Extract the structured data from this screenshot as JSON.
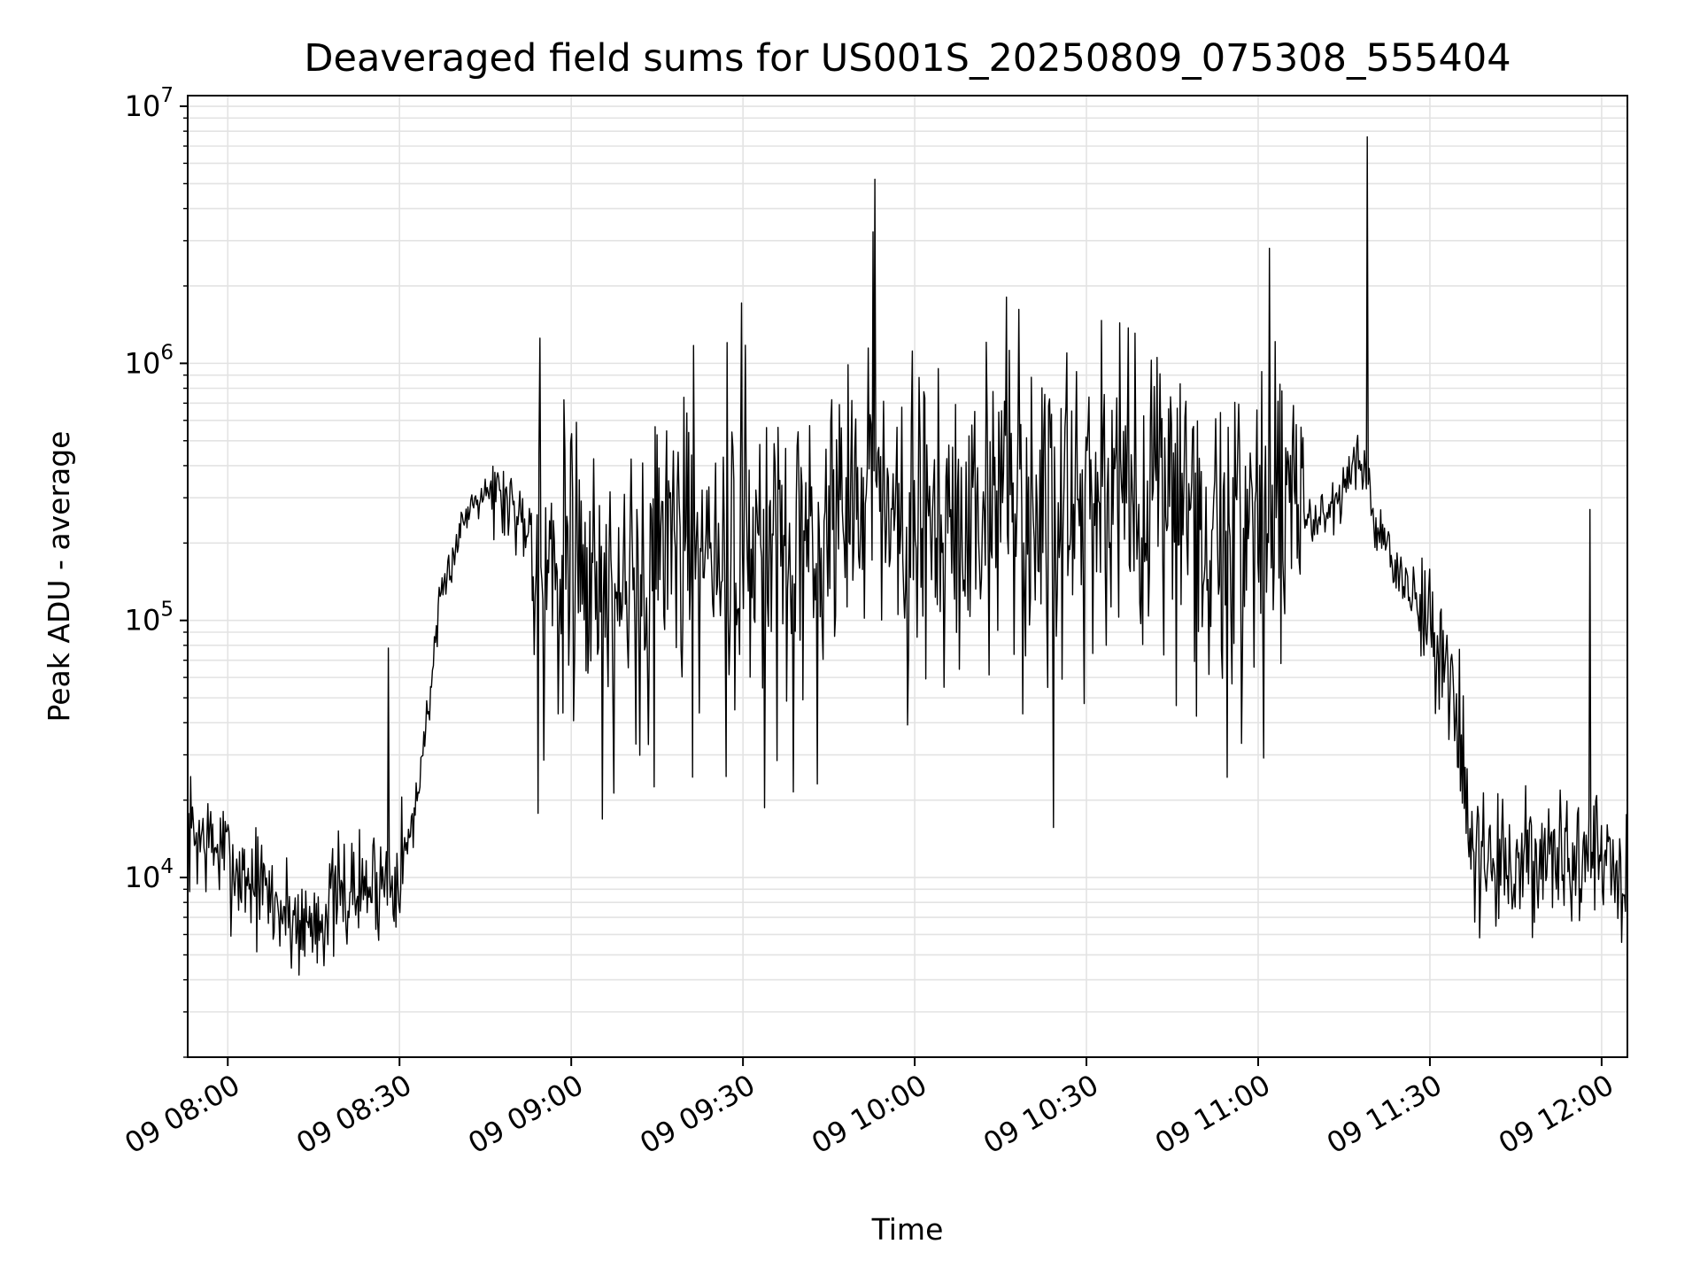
{
  "chart_data": {
    "type": "line",
    "title": "Deaveraged field sums for US001S_20250809_075308_555404",
    "xlabel": "Time",
    "ylabel": "Peak ADU - average",
    "yscale": "log",
    "ylim": [
      2000,
      11000000
    ],
    "xlim": [
      "2025-08-09 07:53:00",
      "2025-08-09 12:04:30"
    ],
    "x_ticks": [
      {
        "label": "09 08:00",
        "time": "08:00"
      },
      {
        "label": "09 08:30",
        "time": "08:30"
      },
      {
        "label": "09 09:00",
        "time": "09:00"
      },
      {
        "label": "09 09:30",
        "time": "09:30"
      },
      {
        "label": "09 10:00",
        "time": "10:00"
      },
      {
        "label": "09 10:30",
        "time": "10:30"
      },
      {
        "label": "09 11:00",
        "time": "11:00"
      },
      {
        "label": "09 11:30",
        "time": "11:30"
      },
      {
        "label": "09 12:00",
        "time": "12:00"
      }
    ],
    "y_ticks": [
      {
        "base": "10",
        "exp": "4",
        "value": 10000
      },
      {
        "base": "10",
        "exp": "5",
        "value": 100000
      },
      {
        "base": "10",
        "exp": "6",
        "value": 1000000
      },
      {
        "base": "10",
        "exp": "7",
        "value": 10000000
      }
    ],
    "grid": true,
    "line_color": "#000000",
    "grid_color": "#e3e3e3",
    "series": [
      {
        "x": [
          "07:53",
          "07:56",
          "07:59",
          "08:02",
          "08:05",
          "08:08",
          "08:11",
          "08:14",
          "08:17",
          "08:20",
          "08:23",
          "08:26",
          "08:29",
          "08:32",
          "08:35",
          "08:37",
          "08:39",
          "08:41",
          "08:43",
          "08:45",
          "08:48",
          "08:51",
          "08:54",
          "08:57",
          "09:00",
          "09:05",
          "09:10",
          "09:15",
          "09:20",
          "09:25",
          "09:30",
          "09:35",
          "09:40",
          "09:45",
          "09:50",
          "09:53",
          "09:55",
          "10:00",
          "10:05",
          "10:10",
          "10:15",
          "10:20",
          "10:25",
          "10:30",
          "10:35",
          "10:40",
          "10:45",
          "10:50",
          "10:55",
          "11:00",
          "11:02",
          "11:05",
          "11:08",
          "11:11",
          "11:14",
          "11:17",
          "11:19",
          "11:20",
          "11:21",
          "11:24",
          "11:27",
          "11:30",
          "11:33",
          "11:35",
          "11:36",
          "11:38",
          "11:41",
          "11:44",
          "11:47",
          "11:50",
          "11:53",
          "11:56",
          "11:59",
          "12:02",
          "12:04"
        ],
        "y": [
          15000,
          14000,
          12500,
          10500,
          9500,
          8000,
          7000,
          6500,
          7500,
          8500,
          9000,
          9500,
          10500,
          14000,
          45000,
          110000,
          170000,
          240000,
          300000,
          330000,
          300000,
          260000,
          220000,
          140000,
          150000,
          130000,
          160000,
          170000,
          170000,
          180000,
          190000,
          200000,
          210000,
          230000,
          250000,
          300000,
          220000,
          210000,
          230000,
          240000,
          250000,
          270000,
          290000,
          260000,
          250000,
          240000,
          250000,
          230000,
          220000,
          200000,
          240000,
          250000,
          250000,
          260000,
          300000,
          420000,
          350000,
          250000,
          210000,
          160000,
          130000,
          100000,
          55000,
          35000,
          22000,
          12000,
          11000,
          10500,
          11000,
          12000,
          11500,
          12000,
          12500,
          11000,
          9000
        ]
      }
    ],
    "peaks": [
      {
        "x": "09:53",
        "y": 5200000
      },
      {
        "x": "11:02",
        "y": 2800000
      },
      {
        "x": "11:19",
        "y": 7600000
      },
      {
        "x": "08:28",
        "y": 78000
      },
      {
        "x": "11:58",
        "y": 270000
      }
    ]
  }
}
